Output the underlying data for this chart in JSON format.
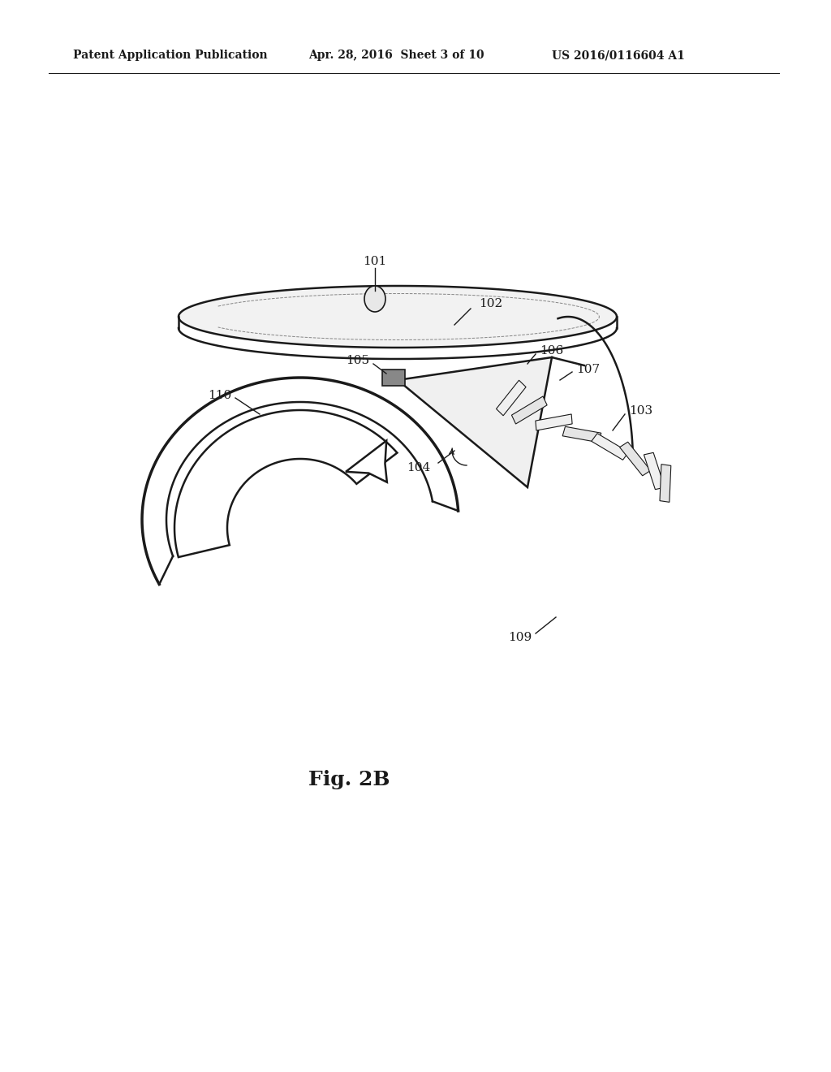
{
  "background_color": "#ffffff",
  "header_left": "Patent Application Publication",
  "header_center": "Apr. 28, 2016  Sheet 3 of 10",
  "header_right": "US 2016/0116604 A1",
  "figure_label": "Fig. 2B",
  "text_color": "#1a1a1a",
  "line_color": "#1a1a1a",
  "header_fontsize": 11,
  "label_fontsize": 11,
  "fig_label_fontsize": 16
}
